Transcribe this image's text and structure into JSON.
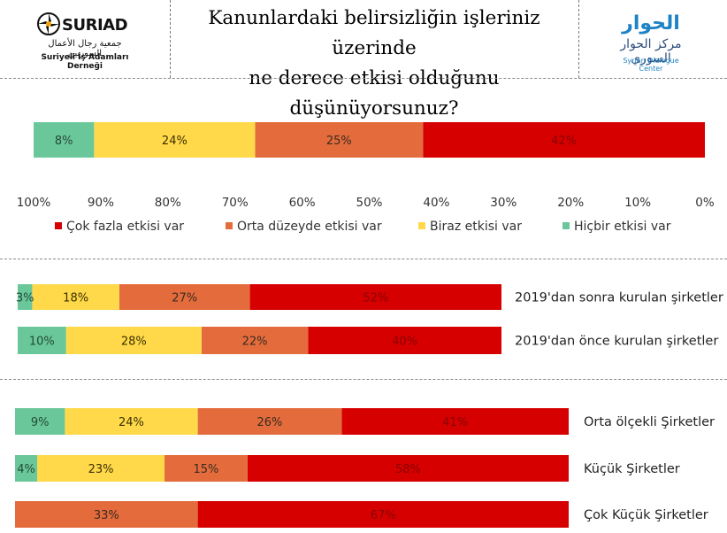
{
  "header": {
    "title_line1": "Kanunlardaki belirsizliğin işleriniz üzerinde",
    "title_line2": "ne derece etkisi olduğunu düşünüyorsunuz?",
    "logo_left": {
      "brand": "SURIAD",
      "arabic": "جمعية رجال الأعمال السوريين",
      "turkish": "Suriyeli İş Adamları Derneği"
    },
    "logo_right": {
      "arabic_top": "الحوار",
      "arabic_sub": "مركز الحوار السوري",
      "english": "Syrian Dialogue Center"
    }
  },
  "colors": {
    "cok_fazla": "#d60000",
    "orta": "#e46c3c",
    "biraz": "#ffd94a",
    "hicbir": "#6ac79a"
  },
  "chart_data": [
    {
      "type": "bar",
      "orientation": "horizontal-stacked-reversed",
      "categories": [
        ""
      ],
      "series": [
        {
          "name": "Çok fazla etkisi var",
          "values": [
            42
          ]
        },
        {
          "name": "Orta düzeyde etkisi var",
          "values": [
            25
          ]
        },
        {
          "name": "Biraz etkisi var",
          "values": [
            24
          ]
        },
        {
          "name": "Hiçbir etkisi var",
          "values": [
            8
          ]
        }
      ],
      "xlim": [
        0,
        100
      ],
      "x_axis_direction": "reversed",
      "x_tick_labels": [
        "100%",
        "90%",
        "80%",
        "70%",
        "60%",
        "50%",
        "40%",
        "30%",
        "20%",
        "10%",
        "0%"
      ],
      "legend_position": "bottom",
      "grid": false
    },
    {
      "type": "bar",
      "orientation": "horizontal-stacked-reversed",
      "categories": [
        "2019'dan sonra kurulan şirketler",
        "2019'dan önce kurulan şirketler"
      ],
      "series": [
        {
          "name": "Çok fazla etkisi var",
          "values": [
            52,
            40
          ]
        },
        {
          "name": "Orta düzeyde etkisi var",
          "values": [
            27,
            22
          ]
        },
        {
          "name": "Biraz etkisi var",
          "values": [
            18,
            28
          ]
        },
        {
          "name": "Hiçbir etkisi var",
          "values": [
            3,
            10
          ]
        }
      ],
      "xlim": [
        0,
        100
      ],
      "grid": false
    },
    {
      "type": "bar",
      "orientation": "horizontal-stacked-reversed",
      "categories": [
        "Orta ölçekli Şirketler",
        "Küçük Şirketler",
        "Çok Küçük Şirketler"
      ],
      "series": [
        {
          "name": "Çok fazla etkisi var",
          "values": [
            41,
            58,
            67
          ]
        },
        {
          "name": "Orta düzeyde etkisi var",
          "values": [
            26,
            15,
            33
          ]
        },
        {
          "name": "Biraz etkisi var",
          "values": [
            24,
            23,
            0
          ]
        },
        {
          "name": "Hiçbir etkisi var",
          "values": [
            9,
            4,
            0
          ]
        }
      ],
      "xlim": [
        0,
        100
      ],
      "grid": false
    }
  ]
}
